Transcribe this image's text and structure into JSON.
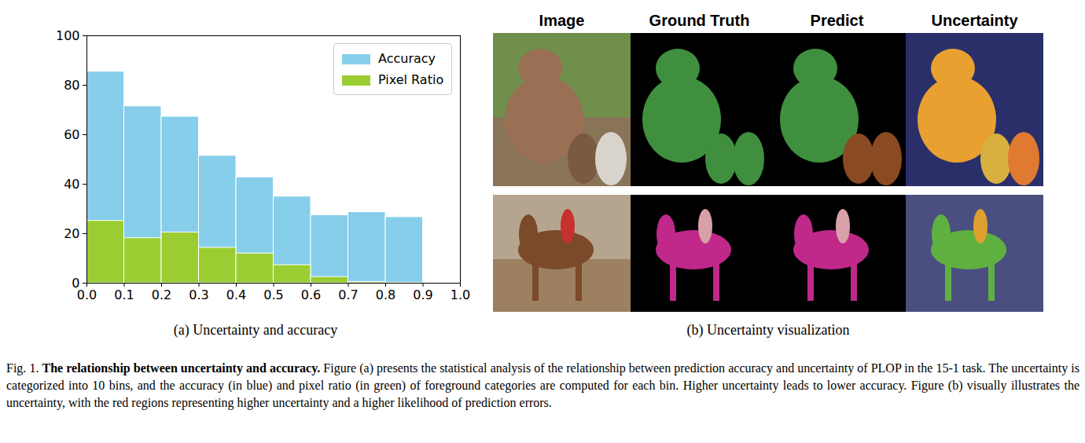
{
  "chart_data": {
    "type": "histogram",
    "subtitle": "(a) Uncertainty and accuracy",
    "bins": [
      0.0,
      0.1,
      0.2,
      0.3,
      0.4,
      0.5,
      0.6,
      0.7,
      0.8,
      0.9,
      1.0
    ],
    "series": [
      {
        "name": "Accuracy",
        "color": "#87ceeb",
        "values": [
          85.5,
          71.5,
          67.3,
          51.5,
          42.8,
          35.0,
          27.5,
          28.7,
          26.7,
          0
        ]
      },
      {
        "name": "Pixel Ratio",
        "color": "#9acd32",
        "values": [
          25.2,
          18.2,
          20.5,
          14.3,
          12.0,
          7.3,
          2.5,
          0.5,
          0.1,
          0
        ]
      }
    ],
    "stacked": false,
    "xlim": [
      0.0,
      1.0
    ],
    "xticks": [
      {
        "value": 0,
        "label": "0.0"
      },
      0.1,
      0.2,
      0.3,
      0.4,
      0.5,
      0.6,
      0.7,
      0.8,
      0.9,
      {
        "value": 1,
        "label": "1.0"
      }
    ],
    "ylim": [
      0,
      100
    ],
    "yticks": [
      0,
      20,
      40,
      60,
      80,
      100
    ],
    "grid": false,
    "legend": "upper right"
  },
  "panel_b": {
    "columns": [
      "Image",
      "Ground Truth",
      "Predict",
      "Uncertainty"
    ],
    "subcaption": "(b) Uncertainty visualization"
  },
  "caption": {
    "label": "Fig. 1.",
    "title": "The relationship between uncertainty and accuracy.",
    "text": "Figure (a) presents the statistical analysis of the relationship between prediction accuracy and uncertainty of PLOP in the 15-1 task. The uncertainty is categorized into 10 bins, and the accuracy (in blue) and pixel ratio (in green) of foreground categories are computed for each bin. Higher uncertainty leads to lower accuracy. Figure (b) visually illustrates the uncertainty, with the red regions representing higher uncertainty and a higher likelihood of prediction errors."
  }
}
